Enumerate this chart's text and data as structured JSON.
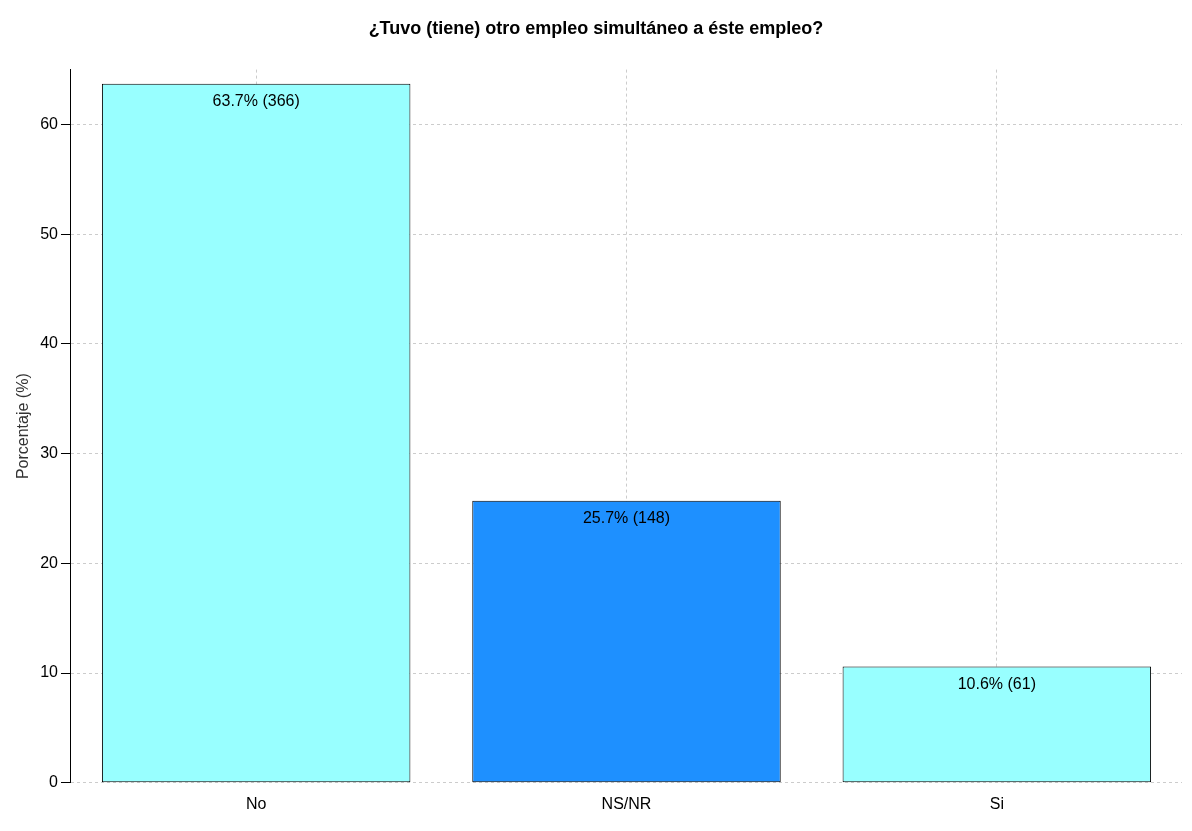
{
  "chart_data": {
    "type": "bar",
    "title": "¿Tuvo (tiene) otro empleo simultáneo a éste empleo?",
    "ylabel": "Porcentaje (%)",
    "categories": [
      "No",
      "NS/NR",
      "Si"
    ],
    "values": [
      63.7,
      25.7,
      10.6
    ],
    "colors": [
      "#98ffff",
      "#1e90ff",
      "#98ffff"
    ],
    "value_labels": [
      "63.7% (366)",
      "25.7% (148)",
      "10.6% (61)"
    ],
    "ylim": [
      0,
      65
    ],
    "yticks": [
      0,
      10,
      20,
      30,
      40,
      50,
      60
    ],
    "grid": true,
    "legend": false
  }
}
